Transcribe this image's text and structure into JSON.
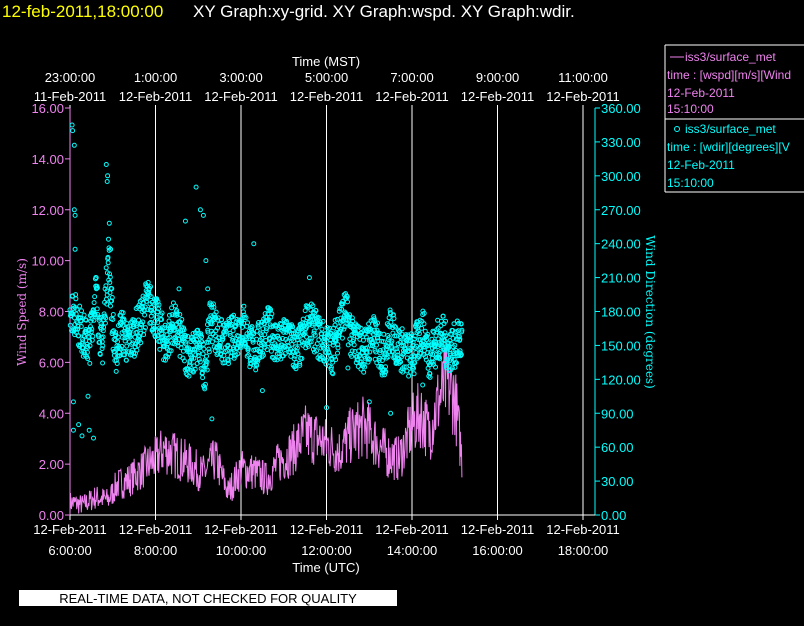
{
  "header": {
    "datetime": "12-feb-2011,18:00:00",
    "graphs": "XY Graph:xy-grid.  XY Graph:wspd.  XY Graph:wdir."
  },
  "footer": {
    "disclaimer": "REAL-TIME DATA, NOT CHECKED FOR QUALITY"
  },
  "legend": [
    {
      "marker": "line",
      "name": "iss3/surface_met",
      "line1": "time : [wspd][m/s][Wind",
      "line2": "12-Feb-2011",
      "line3": "15:10:00"
    },
    {
      "marker": "circle",
      "name": "iss3/surface_met",
      "line1": "time : [wdir][degrees][V",
      "line2": "12-Feb-2011",
      "line3": "15:10:00"
    }
  ],
  "colors": {
    "wspd": "#ee82ee",
    "wdir": "#00ffff",
    "date": "#ffff00",
    "axis": "#ffffff",
    "grid": "#ffffff",
    "bg": "#000000"
  },
  "chart_data": {
    "type": "line",
    "title_top": "Time (MST)",
    "xlabel": "Time (UTC)",
    "ylabel_left": "Wind Speed (m/s)",
    "ylabel_right": "Wind Direction (degrees)",
    "xlim_utc_hours": [
      6,
      19
    ],
    "ylim_left": [
      0,
      16
    ],
    "ylim_right": [
      0,
      360
    ],
    "grid": "vertical",
    "legend_position": "outside-right",
    "x_ticks_utc": [
      {
        "h": 6,
        "date": "12-Feb-2011",
        "time": "6:00:00"
      },
      {
        "h": 8,
        "date": "12-Feb-2011",
        "time": "8:00:00"
      },
      {
        "h": 10,
        "date": "12-Feb-2011",
        "time": "10:00:00"
      },
      {
        "h": 12,
        "date": "12-Feb-2011",
        "time": "12:00:00"
      },
      {
        "h": 14,
        "date": "12-Feb-2011",
        "time": "14:00:00"
      },
      {
        "h": 16,
        "date": "12-Feb-2011",
        "time": "16:00:00"
      },
      {
        "h": 18,
        "date": "12-Feb-2011",
        "time": "18:00:00"
      }
    ],
    "x_ticks_mst": [
      {
        "h": 6,
        "date": "11-Feb-2011",
        "time": "23:00:00"
      },
      {
        "h": 8,
        "date": "12-Feb-2011",
        "time": "1:00:00"
      },
      {
        "h": 10,
        "date": "12-Feb-2011",
        "time": "3:00:00"
      },
      {
        "h": 12,
        "date": "12-Feb-2011",
        "time": "5:00:00"
      },
      {
        "h": 14,
        "date": "12-Feb-2011",
        "time": "7:00:00"
      },
      {
        "h": 16,
        "date": "12-Feb-2011",
        "time": "9:00:00"
      },
      {
        "h": 18,
        "date": "12-Feb-2011",
        "time": "11:00:00"
      }
    ],
    "y_ticks_left": [
      "0.00",
      "2.00",
      "4.00",
      "6.00",
      "8.00",
      "10.00",
      "12.00",
      "14.00",
      "16.00"
    ],
    "y_ticks_right": [
      "0.00",
      "30.00",
      "60.00",
      "90.00",
      "120.00",
      "150.00",
      "180.00",
      "210.00",
      "240.00",
      "270.00",
      "300.00",
      "330.00",
      "360.00"
    ],
    "series": [
      {
        "name": "iss3/surface_met",
        "axis": "left",
        "x": [
          6.0,
          6.3,
          6.6,
          6.9,
          7.1,
          7.4,
          7.7,
          8.0,
          8.2,
          8.5,
          8.8,
          9.1,
          9.4,
          9.7,
          10.0,
          10.3,
          10.6,
          10.9,
          11.2,
          11.5,
          11.8,
          12.0,
          12.3,
          12.6,
          12.9,
          13.1,
          13.4,
          13.7,
          14.0,
          14.2,
          14.4,
          14.6,
          14.8,
          15.0,
          15.17
        ],
        "values": [
          0.5,
          0.4,
          0.7,
          0.6,
          1.2,
          1.4,
          1.8,
          2.2,
          2.6,
          2.3,
          2.0,
          1.6,
          2.2,
          0.9,
          1.8,
          1.7,
          1.4,
          2.1,
          2.5,
          3.2,
          3.0,
          2.8,
          2.5,
          3.2,
          3.5,
          3.0,
          2.4,
          2.2,
          3.5,
          4.0,
          3.2,
          4.4,
          5.2,
          4.6,
          2.2
        ]
      },
      {
        "name": "iss3/surface_met",
        "axis": "right",
        "x": [
          6.0,
          6.15,
          6.3,
          6.45,
          6.6,
          6.75,
          6.9,
          7.05,
          7.2,
          7.35,
          7.5,
          7.65,
          7.8,
          7.95,
          8.1,
          8.25,
          8.4,
          8.55,
          8.7,
          8.85,
          9.0,
          9.15,
          9.3,
          9.45,
          9.6,
          9.75,
          9.9,
          10.05,
          10.2,
          10.35,
          10.5,
          10.65,
          10.8,
          10.95,
          11.1,
          11.25,
          11.4,
          11.55,
          11.7,
          11.85,
          12.0,
          12.15,
          12.3,
          12.45,
          12.6,
          12.75,
          12.9,
          13.05,
          13.2,
          13.35,
          13.5,
          13.65,
          13.8,
          13.95,
          14.1,
          14.25,
          14.4,
          14.55,
          14.7,
          14.85,
          15.0,
          15.17
        ],
        "values": [
          185,
          175,
          160,
          150,
          200,
          145,
          230,
          140,
          165,
          150,
          160,
          170,
          190,
          180,
          165,
          150,
          170,
          160,
          145,
          140,
          150,
          130,
          175,
          160,
          150,
          155,
          160,
          170,
          150,
          145,
          160,
          165,
          155,
          150,
          160,
          145,
          150,
          170,
          165,
          155,
          150,
          145,
          170,
          180,
          155,
          150,
          145,
          160,
          150,
          140,
          165,
          150,
          145,
          140,
          150,
          165,
          140,
          150,
          160,
          145,
          150,
          155
        ]
      },
      {
        "name": "wdir-outliers",
        "axis": "right",
        "x": [
          6.05,
          6.06,
          6.1,
          6.1,
          6.12,
          6.12,
          6.08,
          6.08,
          6.2,
          6.28,
          6.42,
          6.45,
          6.55,
          6.85,
          6.88,
          6.87,
          6.92,
          6.95,
          8.55,
          8.7,
          8.95,
          9.05,
          9.12,
          9.18,
          9.22,
          9.32,
          10.3,
          10.5,
          11.6,
          12.0,
          12.5,
          13.0,
          13.5,
          14.05,
          14.25
        ],
        "values": [
          345,
          340,
          327,
          270,
          265,
          235,
          100,
          75,
          80,
          70,
          105,
          75,
          68,
          310,
          300,
          295,
          258,
          235,
          200,
          260,
          290,
          270,
          265,
          225,
          200,
          85,
          240,
          110,
          210,
          95,
          130,
          100,
          90,
          125,
          115
        ]
      }
    ]
  }
}
